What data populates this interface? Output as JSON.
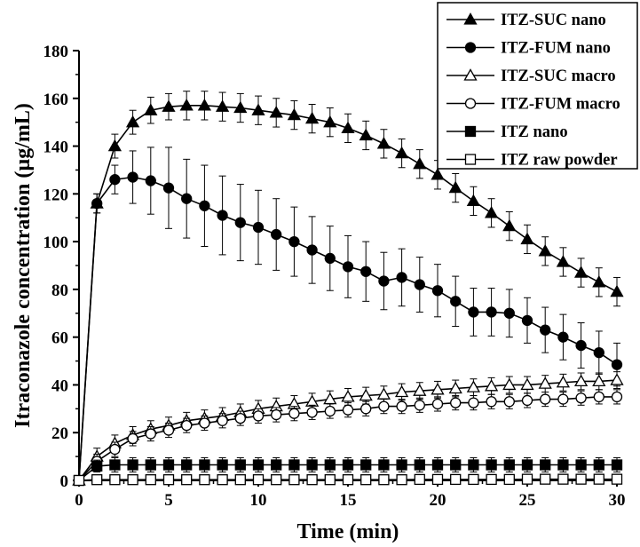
{
  "chart_data": {
    "type": "line",
    "title": "",
    "xlabel": "Time (min)",
    "ylabel": "Itraconazole concentration (µg/mL)",
    "xlim": [
      0,
      30
    ],
    "ylim": [
      0,
      180
    ],
    "xticks": [
      0,
      5,
      10,
      15,
      20,
      25,
      30
    ],
    "yticks": [
      0,
      20,
      40,
      60,
      80,
      100,
      120,
      140,
      160,
      180
    ],
    "grid": false,
    "legend_position": "top-right",
    "x": [
      0,
      1,
      2,
      3,
      4,
      5,
      6,
      7,
      8,
      9,
      10,
      11,
      12,
      13,
      14,
      15,
      16,
      17,
      18,
      19,
      20,
      21,
      22,
      23,
      24,
      25,
      26,
      27,
      28,
      29,
      30
    ],
    "series": [
      {
        "name": "ITZ-SUC nano",
        "marker": "triangle-filled",
        "values": [
          0,
          116,
          140,
          150,
          155,
          156.5,
          157,
          157,
          156.5,
          156,
          155,
          154,
          153,
          151.5,
          150,
          147.5,
          144.5,
          141,
          137,
          132.5,
          128,
          122.5,
          117,
          112,
          106.5,
          101,
          96,
          91.5,
          87,
          83,
          79
        ],
        "errors": [
          0,
          4,
          5,
          5,
          5.5,
          5.5,
          6,
          6,
          6,
          6,
          6,
          6,
          6,
          6,
          6,
          6,
          6,
          6,
          6,
          6,
          6,
          6,
          6,
          6,
          6,
          6,
          6,
          6,
          6,
          6,
          6
        ]
      },
      {
        "name": "ITZ-FUM nano",
        "marker": "circle-filled",
        "values": [
          0,
          116,
          126,
          127,
          125.5,
          122.5,
          118,
          115,
          111,
          108,
          106,
          103,
          100,
          96.5,
          93,
          89.5,
          87.5,
          83.5,
          85,
          82,
          79.5,
          75,
          70.5,
          70.5,
          70,
          67,
          63,
          60,
          56.5,
          53.5,
          48.5
        ],
        "errors": [
          0,
          4,
          6,
          11,
          14,
          17,
          16.5,
          17,
          16.5,
          16,
          15.5,
          15,
          14.5,
          14,
          13.5,
          13,
          12.5,
          12,
          12,
          11.5,
          11,
          10.5,
          10,
          10,
          10,
          9.5,
          9.5,
          9.5,
          9.5,
          9,
          9
        ]
      },
      {
        "name": "ITZ-SUC macro",
        "marker": "triangle-open",
        "values": [
          0,
          10,
          15.5,
          19,
          21.5,
          23,
          25,
          26,
          27,
          28.5,
          30,
          31,
          32,
          33,
          34,
          35,
          35.5,
          36,
          37,
          37.5,
          38,
          38.5,
          39,
          39.5,
          40,
          40,
          40.5,
          41,
          41.5,
          41.5,
          42
        ],
        "errors": [
          0,
          3.5,
          3.5,
          3.5,
          3.5,
          3.5,
          3.5,
          3.5,
          3.5,
          3.5,
          3.5,
          3.5,
          3.5,
          3.5,
          3.5,
          3.5,
          3.5,
          3.5,
          3.5,
          3.5,
          3.5,
          3.5,
          3.5,
          3.5,
          3.5,
          3.5,
          3.5,
          3.5,
          3.5,
          3.5,
          3.5
        ]
      },
      {
        "name": "ITZ-FUM macro",
        "marker": "circle-open",
        "values": [
          0,
          8,
          13,
          17.5,
          19.5,
          21,
          23,
          24,
          25,
          26,
          27,
          27.5,
          28,
          28.5,
          29,
          29.5,
          30,
          31,
          31,
          31.5,
          32,
          32.5,
          32.5,
          33,
          33,
          33.5,
          34,
          34,
          34.5,
          35,
          35
        ],
        "errors": [
          0,
          3,
          3,
          3,
          3,
          3,
          3,
          3,
          3,
          3,
          3,
          3,
          3,
          3,
          3,
          3,
          3,
          3,
          3,
          3,
          3,
          3,
          3,
          3,
          3,
          3,
          3,
          3,
          3,
          3,
          3
        ]
      },
      {
        "name": "ITZ nano",
        "marker": "square-filled",
        "values": [
          0,
          6,
          6.5,
          6.5,
          6.5,
          6.5,
          6.5,
          6.5,
          6.5,
          6.5,
          6.5,
          6.5,
          6.5,
          6.5,
          6.5,
          6.5,
          6.5,
          6.5,
          6.5,
          6.5,
          6.5,
          6.5,
          6.5,
          6.5,
          6.5,
          6.5,
          6.5,
          6.5,
          6.5,
          6.5,
          6.5
        ],
        "errors": [
          0,
          2.5,
          3,
          3,
          3,
          3,
          3,
          3,
          3,
          3,
          3,
          3,
          3,
          3,
          3,
          3,
          3,
          3,
          3,
          3,
          3,
          3,
          3,
          3,
          3,
          3,
          3,
          3,
          3,
          3,
          3
        ]
      },
      {
        "name": "ITZ raw powder",
        "marker": "square-open",
        "values": [
          0,
          0.3,
          0.3,
          0.3,
          0.3,
          0.3,
          0.3,
          0.3,
          0.3,
          0.3,
          0.3,
          0.3,
          0.3,
          0.3,
          0.3,
          0.3,
          0.3,
          0.3,
          0.3,
          0.4,
          0.4,
          0.4,
          0.4,
          0.4,
          0.4,
          0.5,
          0.5,
          0.5,
          0.5,
          0.5,
          0.5
        ],
        "errors": [
          0,
          0.2,
          0.2,
          0.2,
          0.2,
          0.2,
          0.2,
          0.2,
          0.2,
          0.2,
          0.2,
          0.2,
          0.2,
          0.2,
          0.2,
          0.2,
          0.2,
          0.2,
          0.2,
          0.2,
          0.2,
          0.2,
          0.2,
          0.2,
          0.2,
          0.2,
          0.2,
          0.2,
          0.2,
          0.2,
          0.2
        ]
      }
    ]
  }
}
